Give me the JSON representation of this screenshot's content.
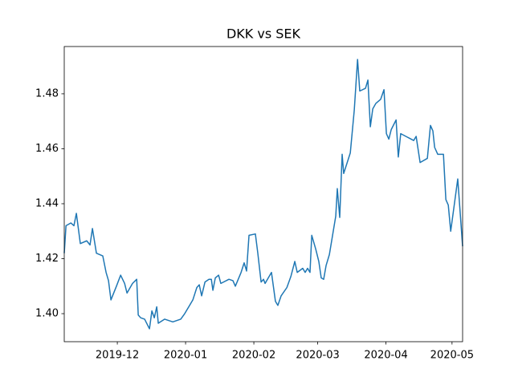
{
  "chart_data": {
    "type": "line",
    "title": "DKK vs SEK",
    "x": [
      5.9,
      6.7,
      8.9,
      10.3,
      11.4,
      13.2,
      16.1,
      17.6,
      18.7,
      20.5,
      23.4,
      24.9,
      26.0,
      27.1,
      29.6,
      31.5,
      33.3,
      34.4,
      36.9,
      38.8,
      39.5,
      40.6,
      42.4,
      44.6,
      45.7,
      46.8,
      47.9,
      48.6,
      51.5,
      55.2,
      58.8,
      60.6,
      64.3,
      66.1,
      67.2,
      68.3,
      69.8,
      71.6,
      72.7,
      73.4,
      74.5,
      76.0,
      77.0,
      80.7,
      82.5,
      83.6,
      86.2,
      87.6,
      88.7,
      89.8,
      92.7,
      93.8,
      95.3,
      96.4,
      97.1,
      100.0,
      101.8,
      102.9,
      104.4,
      107.0,
      108.8,
      110.6,
      111.7,
      114.2,
      115.3,
      116.4,
      117.5,
      118.3,
      120.1,
      121.5,
      122.6,
      123.7,
      124.8,
      126.3,
      129.2,
      129.9,
      131.0,
      132.1,
      132.8,
      135.8,
      137.6,
      139.1,
      140.1,
      142.7,
      143.8,
      144.9,
      146.0,
      147.4,
      149.6,
      151.1,
      152.2,
      153.3,
      154.4,
      156.6,
      157.6,
      158.7,
      164.6,
      165.7,
      167.5,
      170.8,
      172.2,
      173.3,
      174.1,
      175.5,
      178.1,
      179.2,
      180.3,
      181.4,
      184.6,
      186.8
    ],
    "series": [
      {
        "name": "DKK vs SEK",
        "color": "#1f77b4",
        "values": [
          1.422,
          1.432,
          1.433,
          1.432,
          1.4365,
          1.4255,
          1.4265,
          1.425,
          1.431,
          1.422,
          1.421,
          1.415,
          1.412,
          1.405,
          1.41,
          1.414,
          1.411,
          1.4075,
          1.411,
          1.4125,
          1.3995,
          1.3985,
          1.398,
          1.3945,
          1.401,
          1.3985,
          1.4025,
          1.3965,
          1.398,
          1.397,
          1.398,
          1.4,
          1.405,
          1.4095,
          1.4105,
          1.4065,
          1.4115,
          1.4125,
          1.4125,
          1.4085,
          1.413,
          1.414,
          1.411,
          1.4125,
          1.412,
          1.41,
          1.415,
          1.4185,
          1.4155,
          1.4285,
          1.429,
          1.422,
          1.4115,
          1.4125,
          1.411,
          1.415,
          1.4045,
          1.403,
          1.4065,
          1.4095,
          1.4135,
          1.419,
          1.415,
          1.4165,
          1.415,
          1.4165,
          1.415,
          1.4285,
          1.4235,
          1.419,
          1.413,
          1.4125,
          1.4175,
          1.4215,
          1.4355,
          1.4455,
          1.435,
          1.458,
          1.451,
          1.4585,
          1.474,
          1.4925,
          1.481,
          1.482,
          1.485,
          1.468,
          1.4745,
          1.4765,
          1.478,
          1.4815,
          1.4655,
          1.4635,
          1.467,
          1.4705,
          1.457,
          1.4655,
          1.463,
          1.4645,
          1.455,
          1.4565,
          1.4685,
          1.4665,
          1.4605,
          1.458,
          1.458,
          1.4415,
          1.4395,
          1.43,
          1.449,
          1.4245
        ]
      }
    ],
    "xlim": [
      5.9,
      186.8
    ],
    "xticks": [
      {
        "value": 30,
        "label": "2019-12"
      },
      {
        "value": 61,
        "label": "2020-01"
      },
      {
        "value": 92,
        "label": "2020-02"
      },
      {
        "value": 121,
        "label": "2020-03"
      },
      {
        "value": 152,
        "label": "2020-04"
      },
      {
        "value": 182,
        "label": "2020-05"
      }
    ],
    "ylim": [
      1.3898,
      1.4972
    ],
    "yticks": [
      {
        "value": 1.4,
        "label": "1.40"
      },
      1.42,
      1.44,
      1.46,
      1.48
    ],
    "grid": false
  }
}
